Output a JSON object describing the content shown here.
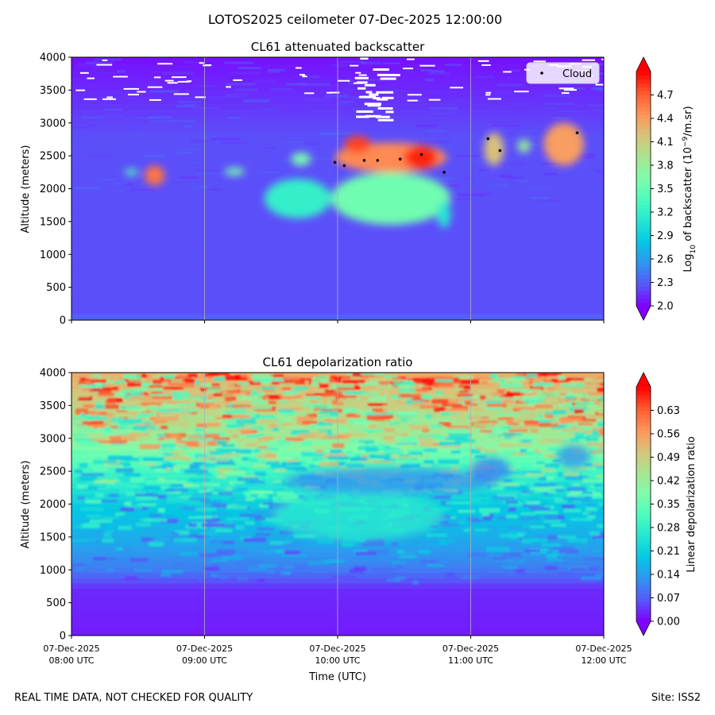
{
  "figure": {
    "suptitle": "LOTOS2025 ceilometer 07-Dec-2025 12:00:00",
    "footer_left": "REAL TIME DATA, NOT CHECKED FOR QUALITY",
    "footer_right": "Site: ISS2"
  },
  "colors": {
    "cmap": [
      "#7f00ff",
      "#5856f9",
      "#3095f0",
      "#06c6e4",
      "#24e6d2",
      "#4dfcbe",
      "#7ffcab",
      "#a8e58f",
      "#d6c47a",
      "#ff9459",
      "#ff5a2e",
      "#ff0000"
    ],
    "cloud_marker": "#000000",
    "gridline": "#b0b0b0",
    "missing": "#ffffff"
  },
  "chart_data": [
    {
      "type": "heatmap",
      "title": "CL61 attenuated backscatter",
      "xlabel": "",
      "ylabel": "Altitude (meters)",
      "x_range_utc_hours": [
        8,
        12
      ],
      "ylim": [
        0,
        4000
      ],
      "yticks": [
        0,
        500,
        1000,
        1500,
        2000,
        2500,
        3000,
        3500,
        4000
      ],
      "xticks": [
        {
          "line1": "07-Dec-2025",
          "line2": "08:00 UTC"
        },
        {
          "line1": "07-Dec-2025",
          "line2": "09:00 UTC"
        },
        {
          "line1": "07-Dec-2025",
          "line2": "10:00 UTC"
        },
        {
          "line1": "07-Dec-2025",
          "line2": "11:00 UTC"
        },
        {
          "line1": "07-Dec-2025",
          "line2": "12:00 UTC"
        }
      ],
      "show_xtick_labels": false,
      "grid": "x",
      "colorbar": {
        "label": "Log10 of backscatter (10-9/m.sr)",
        "range": [
          2.0,
          5.0
        ],
        "ticks": [
          "2.0",
          "2.3",
          "2.6",
          "2.9",
          "3.2",
          "3.5",
          "3.8",
          "4.1",
          "4.4",
          "4.7"
        ],
        "extend": "both"
      },
      "legend": {
        "entries": [
          "Cloud"
        ],
        "loc": "upper right"
      },
      "background_level": 2.25,
      "upper_level": 2.05,
      "features": [
        {
          "t0": 9.95,
          "t1": 10.85,
          "z0": 1450,
          "z1": 2250,
          "level": 3.55,
          "desc": "aerosol/precip layer"
        },
        {
          "t0": 9.45,
          "t1": 9.95,
          "z0": 1550,
          "z1": 2150,
          "level": 3.2
        },
        {
          "t0": 10.75,
          "t1": 10.85,
          "z0": 1400,
          "z1": 1800,
          "level": 3.1
        },
        {
          "t0": 9.98,
          "t1": 10.82,
          "z0": 2250,
          "z1": 2700,
          "level": 4.5,
          "desc": "main cloud"
        },
        {
          "t0": 10.05,
          "t1": 10.25,
          "z0": 2550,
          "z1": 2800,
          "level": 4.8
        },
        {
          "t0": 10.5,
          "t1": 10.75,
          "z0": 2300,
          "z1": 2650,
          "level": 4.9
        },
        {
          "t0": 11.1,
          "t1": 11.25,
          "z0": 2350,
          "z1": 2850,
          "level": 4.2
        },
        {
          "t0": 11.35,
          "t1": 11.45,
          "z0": 2550,
          "z1": 2750,
          "level": 3.8
        },
        {
          "t0": 11.55,
          "t1": 11.85,
          "z0": 2350,
          "z1": 3000,
          "level": 4.4
        },
        {
          "t0": 8.55,
          "t1": 8.7,
          "z0": 2050,
          "z1": 2350,
          "level": 4.6
        },
        {
          "t0": 8.4,
          "t1": 8.5,
          "z0": 2200,
          "z1": 2300,
          "level": 3.4
        },
        {
          "t0": 9.15,
          "t1": 9.3,
          "z0": 2200,
          "z1": 2320,
          "level": 3.6
        },
        {
          "t0": 9.65,
          "t1": 9.8,
          "z0": 2350,
          "z1": 2550,
          "level": 3.6
        }
      ],
      "cloud_points": [
        {
          "t": 9.98,
          "z": 2400
        },
        {
          "t": 10.05,
          "z": 2350
        },
        {
          "t": 10.2,
          "z": 2430
        },
        {
          "t": 10.3,
          "z": 2430
        },
        {
          "t": 10.47,
          "z": 2450
        },
        {
          "t": 10.63,
          "z": 2520
        },
        {
          "t": 10.8,
          "z": 2250
        },
        {
          "t": 11.13,
          "z": 2760
        },
        {
          "t": 11.22,
          "z": 2580
        },
        {
          "t": 11.8,
          "z": 2850
        }
      ]
    },
    {
      "type": "heatmap",
      "title": "CL61 depolarization ratio",
      "xlabel": "Time (UTC)",
      "ylabel": "Altitude (meters)",
      "x_range_utc_hours": [
        8,
        12
      ],
      "ylim": [
        0,
        4000
      ],
      "yticks": [
        0,
        500,
        1000,
        1500,
        2000,
        2500,
        3000,
        3500,
        4000
      ],
      "xticks": [
        {
          "line1": "07-Dec-2025",
          "line2": "08:00 UTC"
        },
        {
          "line1": "07-Dec-2025",
          "line2": "09:00 UTC"
        },
        {
          "line1": "07-Dec-2025",
          "line2": "10:00 UTC"
        },
        {
          "line1": "07-Dec-2025",
          "line2": "11:00 UTC"
        },
        {
          "line1": "07-Dec-2025",
          "line2": "12:00 UTC"
        }
      ],
      "show_xtick_labels": true,
      "grid": "x",
      "colorbar": {
        "label": "Linear depolarization ratio",
        "range": [
          0.0,
          0.7
        ],
        "ticks": [
          "0.00",
          "0.07",
          "0.14",
          "0.21",
          "0.28",
          "0.35",
          "0.42",
          "0.49",
          "0.56",
          "0.63"
        ],
        "extend": "both"
      },
      "profile": [
        {
          "z": 0,
          "level": 0.02
        },
        {
          "z": 700,
          "level": 0.03
        },
        {
          "z": 1000,
          "level": 0.1
        },
        {
          "z": 1500,
          "level": 0.16
        },
        {
          "z": 2000,
          "level": 0.2
        },
        {
          "z": 2500,
          "level": 0.3
        },
        {
          "z": 3000,
          "level": 0.42
        },
        {
          "z": 3500,
          "level": 0.48
        },
        {
          "z": 4000,
          "level": 0.55
        }
      ],
      "features": [
        {
          "t0": 9.5,
          "t1": 10.8,
          "z0": 1450,
          "z1": 2200,
          "level": 0.27,
          "desc": "low-depol layer"
        },
        {
          "t0": 9.6,
          "t1": 11.2,
          "z0": 2150,
          "z1": 2550,
          "level": 0.12,
          "desc": "cloud, low depol"
        },
        {
          "t0": 11.0,
          "t1": 11.3,
          "z0": 2350,
          "z1": 2700,
          "level": 0.1
        },
        {
          "t0": 11.65,
          "t1": 11.9,
          "z0": 2550,
          "z1": 2900,
          "level": 0.12
        }
      ]
    }
  ]
}
